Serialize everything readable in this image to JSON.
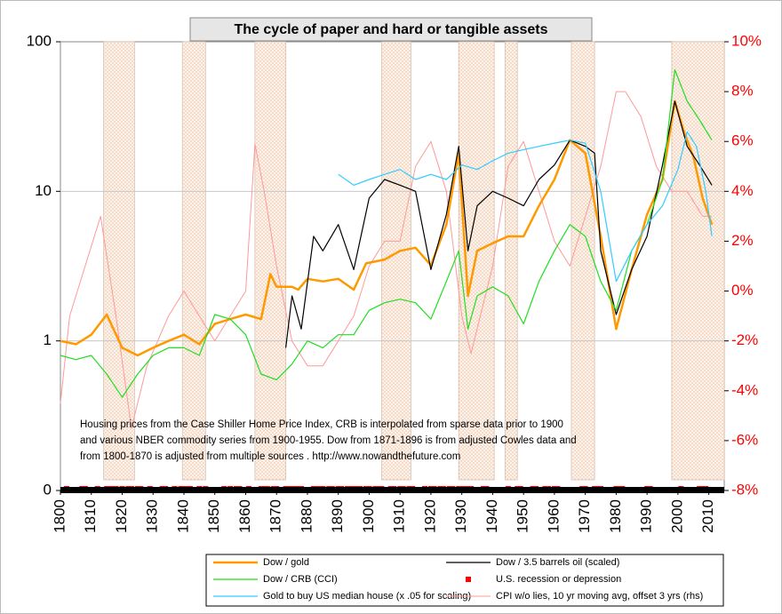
{
  "chart_data": {
    "type": "line",
    "title": "The cycle of paper and hard or tangible assets",
    "annotation": [
      "Housing prices from the Case Shiller Home Price Index, CRB is interpolated from sparse data prior to 1900",
      "and various NBER commodity series from 1900-1955.  Dow from 1871-1896 is from adjusted Cowles data and",
      "from 1800-1870 is adjusted from multiple sources .  http://www.nowandthefuture.com"
    ],
    "xlim": [
      1800,
      2015
    ],
    "xticks": [
      1800,
      1810,
      1820,
      1830,
      1840,
      1850,
      1860,
      1870,
      1880,
      1890,
      1900,
      1910,
      1920,
      1930,
      1940,
      1950,
      1960,
      1970,
      1980,
      1990,
      2000,
      2010
    ],
    "y_scale": "log",
    "ylim": [
      0.1,
      100
    ],
    "yticks": [
      {
        "value": 0.1,
        "label": "0"
      },
      1,
      10,
      100
    ],
    "y2lim": [
      -8,
      10
    ],
    "y2ticks": [
      {
        "value": -8,
        "label": "-8%"
      },
      {
        "value": -6,
        "label": "-6%"
      },
      {
        "value": -4,
        "label": "-4%"
      },
      {
        "value": -2,
        "label": "-2%"
      },
      {
        "value": 0,
        "label": "0%"
      },
      {
        "value": 2,
        "label": "2%"
      },
      {
        "value": 4,
        "label": "4%"
      },
      {
        "value": 6,
        "label": "6%"
      },
      {
        "value": 8,
        "label": "8%"
      },
      {
        "value": 10,
        "label": "10%"
      }
    ],
    "grid": true,
    "shaded_periods": [
      [
        1814,
        1824
      ],
      [
        1839.5,
        1847
      ],
      [
        1863,
        1873
      ],
      [
        1904,
        1913.5
      ],
      [
        1929,
        1940.5
      ],
      [
        1944,
        1948
      ],
      [
        1965.5,
        1973
      ],
      [
        1998,
        2015
      ]
    ],
    "series": [
      {
        "name": "Dow / gold",
        "color": "#ff9900",
        "width": 2.5,
        "x": [
          1800,
          1805,
          1810,
          1815,
          1820,
          1825,
          1830,
          1835,
          1840,
          1845,
          1850,
          1855,
          1860,
          1865,
          1868,
          1870,
          1875,
          1877,
          1880,
          1885,
          1890,
          1895,
          1899,
          1905,
          1910,
          1915,
          1920,
          1925,
          1929,
          1932,
          1935,
          1940,
          1945,
          1950,
          1955,
          1960,
          1965,
          1970,
          1975,
          1980,
          1985,
          1990,
          1995,
          1999,
          2002,
          2005,
          2008,
          2011
        ],
        "values": [
          1.0,
          0.95,
          1.1,
          1.5,
          0.9,
          0.8,
          0.9,
          1.0,
          1.1,
          0.95,
          1.3,
          1.4,
          1.5,
          1.4,
          2.8,
          2.3,
          2.3,
          2.2,
          2.6,
          2.5,
          2.6,
          2.2,
          3.3,
          3.5,
          4.0,
          4.2,
          3.2,
          6,
          18,
          2.0,
          4,
          4.5,
          5,
          5,
          8,
          12,
          22,
          18,
          5,
          1.2,
          3,
          7,
          12,
          40,
          25,
          17,
          9,
          6
        ]
      },
      {
        "name": "Dow / 3.5 barrels oil (scaled)",
        "color": "#000000",
        "width": 1.2,
        "x": [
          1873,
          1875,
          1878,
          1882,
          1885,
          1890,
          1895,
          1900,
          1905,
          1910,
          1915,
          1920,
          1925,
          1929,
          1932,
          1935,
          1940,
          1945,
          1950,
          1955,
          1960,
          1965,
          1970,
          1973,
          1975,
          1980,
          1985,
          1990,
          1995,
          1999,
          2003,
          2007,
          2011
        ],
        "values": [
          0.9,
          2,
          1.2,
          5,
          4,
          6,
          3,
          9,
          12,
          11,
          10,
          3,
          7,
          20,
          4,
          8,
          10,
          9,
          8,
          12,
          15,
          22,
          20,
          18,
          4,
          1.5,
          3,
          5,
          15,
          40,
          20,
          15,
          11
        ]
      },
      {
        "name": "Dow / CRB (CCI)",
        "color": "#22dd22",
        "width": 1.2,
        "x": [
          1800,
          1805,
          1810,
          1815,
          1820,
          1825,
          1830,
          1835,
          1840,
          1845,
          1850,
          1855,
          1860,
          1865,
          1870,
          1875,
          1880,
          1885,
          1890,
          1895,
          1900,
          1905,
          1910,
          1915,
          1920,
          1925,
          1929,
          1932,
          1935,
          1940,
          1945,
          1950,
          1955,
          1960,
          1965,
          1970,
          1975,
          1980,
          1985,
          1990,
          1995,
          1999,
          2003,
          2007,
          2011
        ],
        "values": [
          0.8,
          0.75,
          0.8,
          0.6,
          0.42,
          0.6,
          0.8,
          0.9,
          0.9,
          0.8,
          1.5,
          1.4,
          1.1,
          0.6,
          0.55,
          0.7,
          1.0,
          0.9,
          1.1,
          1.1,
          1.6,
          1.8,
          1.9,
          1.8,
          1.4,
          2.5,
          4,
          1.2,
          2,
          2.3,
          2,
          1.3,
          2.5,
          4,
          6,
          5,
          2.5,
          1.6,
          4,
          6,
          12,
          65,
          40,
          30,
          22
        ]
      },
      {
        "name": "U.S. recession or depression",
        "color": "#ff0000",
        "marker": "square",
        "x": [
          1802,
          1807,
          1808,
          1812,
          1815,
          1816,
          1817,
          1818,
          1820,
          1822,
          1823,
          1825,
          1826,
          1829,
          1833,
          1834,
          1837,
          1839,
          1840,
          1841,
          1842,
          1845,
          1847,
          1853,
          1855,
          1857,
          1858,
          1861,
          1865,
          1866,
          1867,
          1869,
          1870,
          1873,
          1874,
          1875,
          1876,
          1877,
          1878,
          1882,
          1883,
          1884,
          1885,
          1887,
          1888,
          1890,
          1891,
          1893,
          1894,
          1895,
          1896,
          1897,
          1899,
          1900,
          1902,
          1903,
          1904,
          1907,
          1908,
          1910,
          1911,
          1913,
          1914,
          1918,
          1920,
          1921,
          1923,
          1924,
          1926,
          1927,
          1929,
          1930,
          1931,
          1932,
          1933,
          1937,
          1938,
          1945,
          1948,
          1949,
          1953,
          1954,
          1957,
          1958,
          1960,
          1961,
          1969,
          1970,
          1973,
          1974,
          1975,
          1980,
          1981,
          1982,
          1990,
          1991,
          2001,
          2007,
          2008,
          2009
        ]
      },
      {
        "name": "Gold to buy US median house (x .05 for scaling)",
        "color": "#33ccff",
        "width": 1.2,
        "x": [
          1890,
          1895,
          1900,
          1905,
          1910,
          1915,
          1920,
          1925,
          1930,
          1935,
          1940,
          1945,
          1950,
          1955,
          1960,
          1965,
          1970,
          1975,
          1980,
          1985,
          1990,
          1995,
          2000,
          2003,
          2006,
          2009,
          2011
        ],
        "values": [
          13,
          11,
          12,
          13,
          14,
          12,
          13,
          12,
          15,
          14,
          16,
          18,
          19,
          20,
          21,
          22,
          21,
          10,
          2.5,
          4,
          6,
          8,
          14,
          25,
          20,
          10,
          5
        ]
      },
      {
        "name": "CPI w/o lies, 10 yr moving avg, offset 3 yrs (rhs)",
        "color": "#ff9999",
        "width": 1,
        "axis": "y2",
        "x": [
          1800,
          1803,
          1808,
          1813,
          1818,
          1823,
          1828,
          1835,
          1840,
          1845,
          1850,
          1855,
          1860,
          1863,
          1866,
          1870,
          1875,
          1880,
          1885,
          1890,
          1895,
          1900,
          1905,
          1910,
          1915,
          1920,
          1925,
          1930,
          1933,
          1936,
          1940,
          1945,
          1950,
          1955,
          1960,
          1965,
          1970,
          1975,
          1980,
          1983,
          1988,
          1993,
          1998,
          2003,
          2008,
          2011
        ],
        "values": [
          -4.5,
          -1,
          1,
          3,
          -1,
          -5.5,
          -3,
          -1,
          0,
          -1,
          -2,
          -1,
          0,
          5.9,
          4,
          1,
          -2,
          -3,
          -3,
          -2,
          -1,
          1,
          2,
          2,
          5,
          6,
          4,
          -1,
          -2.5,
          -1,
          1,
          5,
          6,
          4,
          2,
          1,
          3,
          5,
          8,
          8,
          7,
          5,
          4,
          4,
          3,
          3
        ]
      }
    ]
  }
}
